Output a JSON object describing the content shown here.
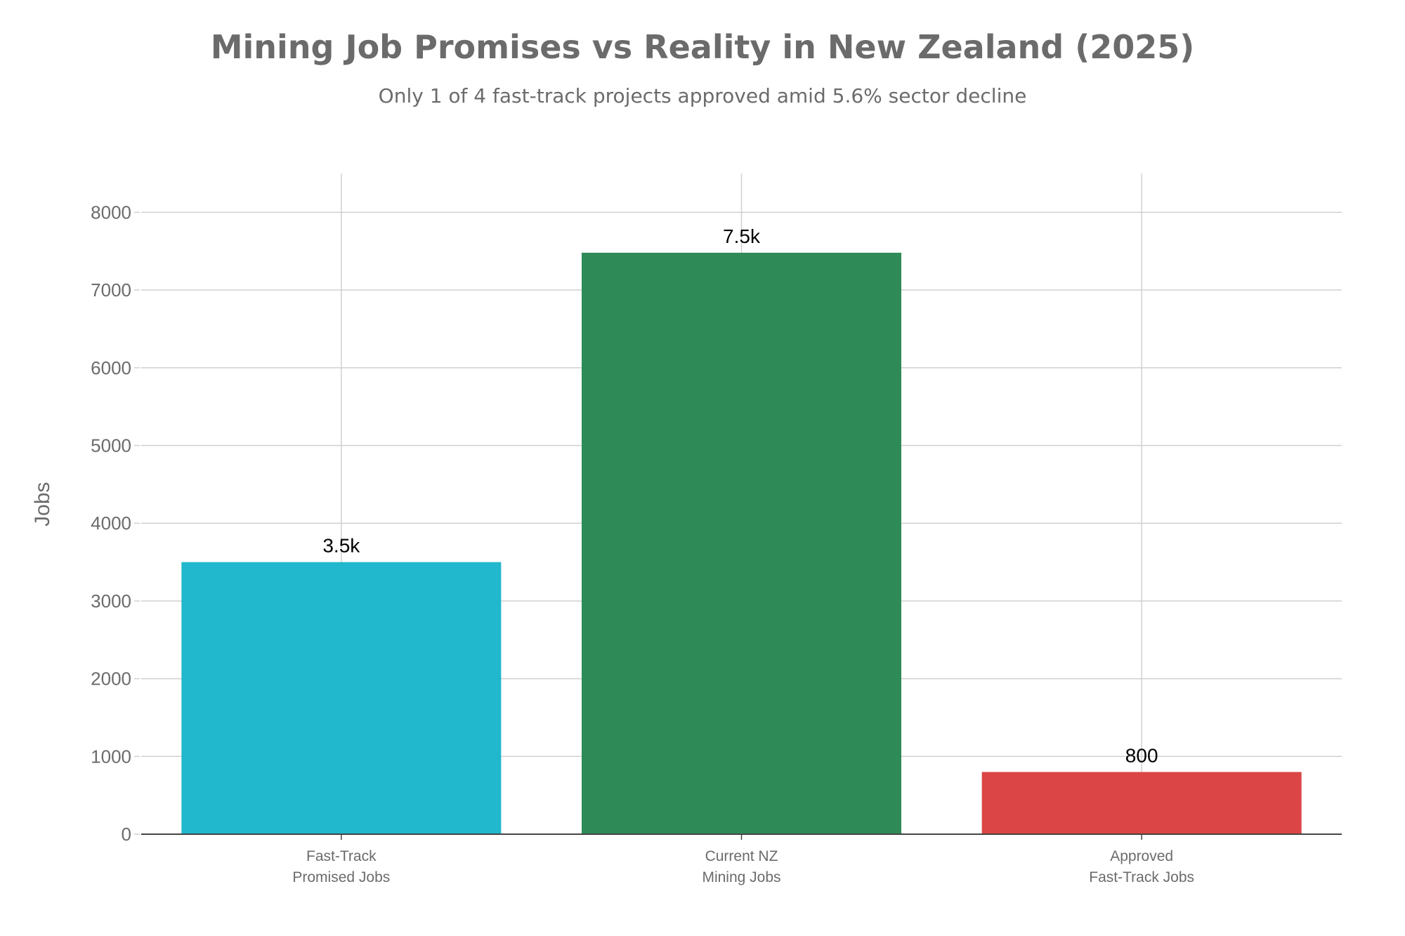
{
  "chart_data": {
    "type": "bar",
    "title": "Mining Job Promises vs Reality in New Zealand (2025)",
    "subtitle": "Only 1 of 4 fast-track projects approved amid 5.6% sector decline",
    "xlabel": "",
    "ylabel": "Jobs",
    "ylim": [
      0,
      8500
    ],
    "yticks": [
      0,
      1000,
      2000,
      3000,
      4000,
      5000,
      6000,
      7000,
      8000
    ],
    "grid": true,
    "categories": [
      [
        "Fast-Track",
        "Promised Jobs"
      ],
      [
        "Current NZ",
        "Mining Jobs"
      ],
      [
        "Approved",
        "Fast-Track Jobs"
      ]
    ],
    "values": [
      3500,
      7480,
      800
    ],
    "data_labels": [
      "3.5k",
      "7.5k",
      "800"
    ],
    "colors": [
      "#21b7cc",
      "#2e8b57",
      "#db4545"
    ]
  }
}
